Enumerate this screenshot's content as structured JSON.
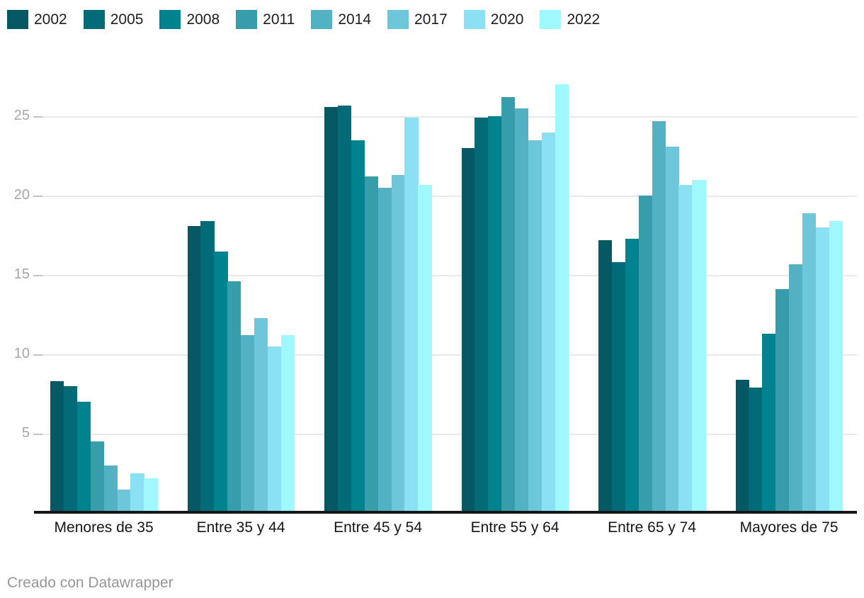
{
  "chart_data": {
    "type": "bar",
    "title": "",
    "xlabel": "",
    "ylabel": "",
    "categories": [
      "Menores de 35",
      "Entre 35 y 44",
      "Entre 45 y 54",
      "Entre 55 y 64",
      "Entre 65 y 74",
      "Mayores de 75"
    ],
    "series": [
      {
        "name": "2002",
        "color": "#045965",
        "values": [
          8.2,
          18.0,
          25.5,
          22.9,
          17.1,
          8.3
        ]
      },
      {
        "name": "2005",
        "color": "#026b77",
        "values": [
          7.9,
          18.3,
          25.6,
          24.8,
          15.7,
          7.8
        ]
      },
      {
        "name": "2008",
        "color": "#00828f",
        "values": [
          6.9,
          16.4,
          23.4,
          24.9,
          17.2,
          11.2
        ]
      },
      {
        "name": "2011",
        "color": "#389daa",
        "values": [
          4.4,
          14.5,
          21.1,
          26.1,
          19.9,
          14.0
        ]
      },
      {
        "name": "2014",
        "color": "#52b1c2",
        "values": [
          2.9,
          11.1,
          20.4,
          25.4,
          24.6,
          15.6
        ]
      },
      {
        "name": "2017",
        "color": "#6ec6da",
        "values": [
          1.4,
          12.2,
          21.2,
          23.4,
          23.0,
          18.8
        ]
      },
      {
        "name": "2020",
        "color": "#8ce0f3",
        "values": [
          2.4,
          10.4,
          24.8,
          23.9,
          20.6,
          17.9
        ]
      },
      {
        "name": "2022",
        "color": "#9ff8fe",
        "values": [
          2.1,
          11.1,
          20.6,
          26.9,
          20.9,
          18.3
        ]
      }
    ],
    "ylim": [
      0,
      27.7
    ],
    "yticks": [
      5,
      10,
      15,
      20,
      25
    ],
    "grid": true,
    "legend_position": "top"
  },
  "footer": {
    "text": "Creado con Datawrapper"
  }
}
